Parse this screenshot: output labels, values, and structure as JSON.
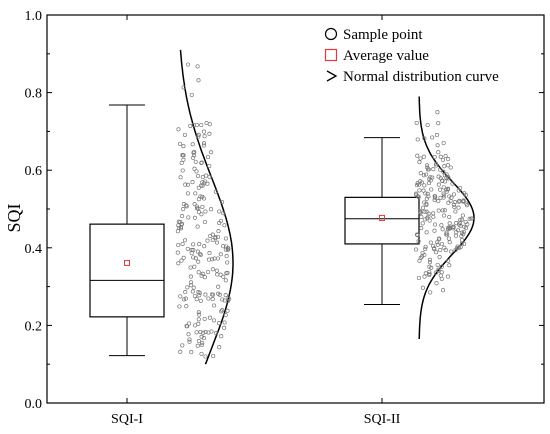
{
  "chart_data": {
    "type": "box",
    "title": "",
    "xlabel": "",
    "ylabel": "SQI",
    "ylim": [
      0.0,
      1.0
    ],
    "yticks": [
      "0.0",
      "0.2",
      "0.4",
      "0.6",
      "0.8",
      "1.0"
    ],
    "grid": false,
    "legend_position": "top-right",
    "categories": [
      "SQI-I",
      "SQI-II"
    ],
    "legend": [
      {
        "marker": "circle",
        "label": "Sample point"
      },
      {
        "marker": "square",
        "label": "Average value",
        "color": "#e8383d"
      },
      {
        "marker": "chevron",
        "label": "Normal distribution curve"
      }
    ],
    "series": [
      {
        "category": "SQI-I",
        "whisker_min": 0.122,
        "q1": 0.222,
        "median": 0.316,
        "q3": 0.461,
        "whisker_max": 0.768,
        "mean": 0.361,
        "points_min": 0.115,
        "points_max": 0.88,
        "curve_range": [
          0.1,
          0.91
        ]
      },
      {
        "category": "SQI-II",
        "whisker_min": 0.254,
        "q1": 0.41,
        "median": 0.475,
        "q3": 0.53,
        "whisker_max": 0.684,
        "mean": 0.477,
        "points_min": 0.28,
        "points_max": 0.75,
        "curve_range": [
          0.165,
          0.79
        ]
      }
    ],
    "colors": {
      "mean_marker": "#e8383d",
      "lines": "#000000",
      "points": "#777777"
    }
  }
}
